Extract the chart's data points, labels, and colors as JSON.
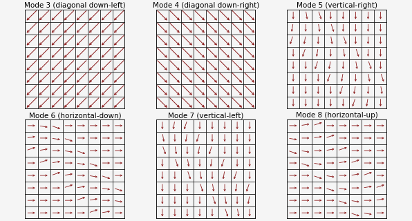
{
  "modes": [
    {
      "title": "Mode 3 (diagonal down-left)",
      "type": "diag_down_left"
    },
    {
      "title": "Mode 4 (diagonal down-right)",
      "type": "diag_down_right"
    },
    {
      "title": "Mode 5 (vertical-right)",
      "type": "vertical_right"
    },
    {
      "title": "Mode 6 (horizontal-down)",
      "type": "horizontal_down"
    },
    {
      "title": "Mode 7 (vertical-left)",
      "type": "vertical_left"
    },
    {
      "title": "Mode 8 (horizontal-up)",
      "type": "horizontal_up"
    }
  ],
  "grid_size": 8,
  "grid_color": "#1a1a1a",
  "arrow_color": "#8b1a1a",
  "bg_color": "#f5f5f5",
  "title_fontsize": 7.5
}
